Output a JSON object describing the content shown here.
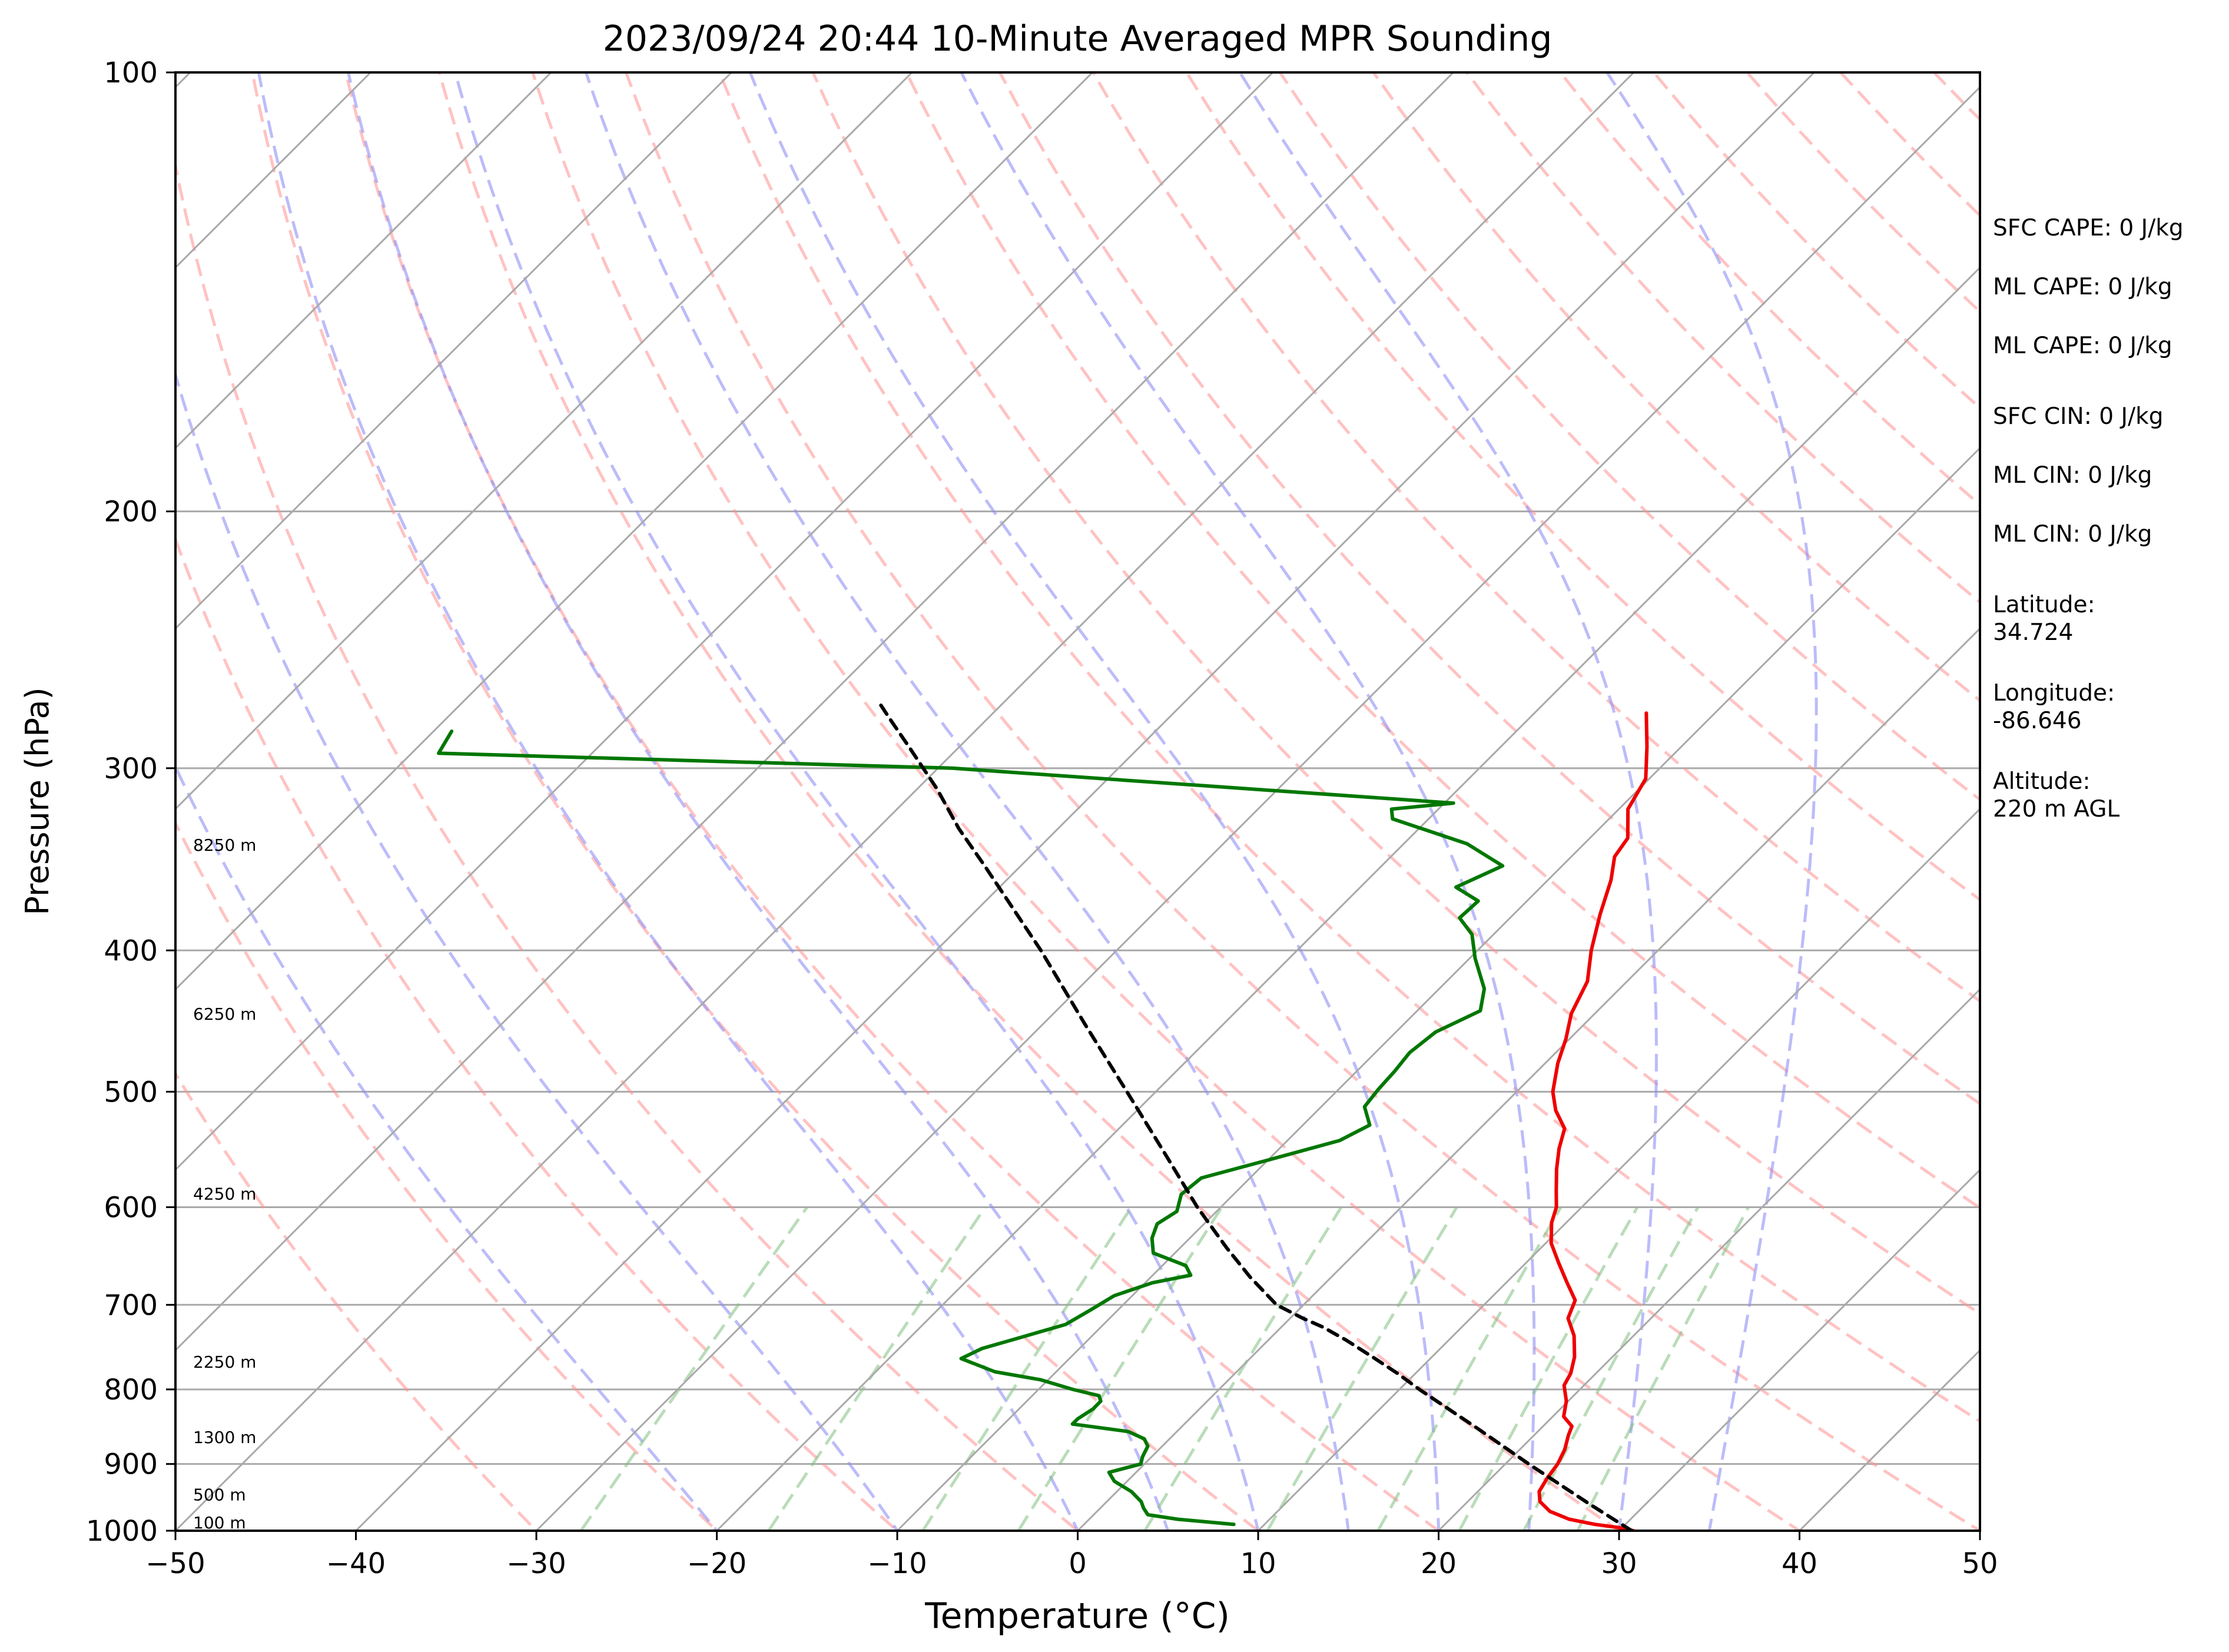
{
  "chart_data": {
    "type": "line",
    "subtype": "skew-t log-p sounding",
    "title": "2023/09/24 20:44 10-Minute Averaged MPR Sounding",
    "xlabel": "Temperature (°C)",
    "ylabel": "Pressure (hPa)",
    "xlim": [
      -50,
      50
    ],
    "ylim": [
      1000,
      100
    ],
    "y_scale": "log",
    "x_ticks": [
      -50,
      -40,
      -30,
      -20,
      -10,
      0,
      10,
      20,
      30,
      40,
      50
    ],
    "x_tick_labels": [
      "−50",
      "−40",
      "−30",
      "−20",
      "−10",
      "0",
      "10",
      "20",
      "30",
      "40",
      "50"
    ],
    "y_ticks": [
      1000,
      900,
      800,
      700,
      600,
      500,
      400,
      300,
      200,
      100
    ],
    "y_tick_labels": [
      "1000",
      "900",
      "800",
      "700",
      "600",
      "500",
      "400",
      "300",
      "200",
      "100"
    ],
    "grid": true,
    "isotherm_temperatures": [
      -140,
      -130,
      -120,
      -110,
      -100,
      -90,
      -80,
      -70,
      -60,
      -50,
      -40,
      -30,
      -20,
      -10,
      0,
      10,
      20,
      30,
      40,
      50
    ],
    "dry_adiabat_thetas_C": [
      -30,
      -20,
      -10,
      0,
      10,
      20,
      30,
      40,
      50,
      60,
      70,
      80,
      90,
      100,
      110,
      120,
      130,
      140,
      150,
      160,
      170,
      180,
      190,
      200
    ],
    "moist_adiabat_start_temps_C": [
      -20,
      -10,
      0,
      5,
      10,
      15,
      20,
      25,
      30,
      35
    ],
    "mixing_ratio_lines_gkg": [
      0.4,
      1,
      2,
      3,
      5,
      8,
      12,
      16,
      20,
      24
    ],
    "colors": {
      "temperature": "#ee0000",
      "dewpoint": "#007700",
      "parcel": "#000000",
      "dry_adiabat": "#ff9090",
      "moist_adiabat": "#8f8ff5",
      "mixing_ratio": "#7fbf7f",
      "isotherm": "#a9a9a9"
    },
    "series": [
      {
        "key": "temperature",
        "points": [
          [
            1000,
            30.8
          ],
          [
            995,
            29.8
          ],
          [
            990,
            28.3
          ],
          [
            982,
            26.6
          ],
          [
            970,
            25.1
          ],
          [
            955,
            24.0
          ],
          [
            940,
            23.4
          ],
          [
            920,
            23.1
          ],
          [
            900,
            22.9
          ],
          [
            880,
            22.5
          ],
          [
            860,
            21.9
          ],
          [
            848,
            21.6
          ],
          [
            835,
            20.6
          ],
          [
            815,
            19.9
          ],
          [
            795,
            18.9
          ],
          [
            780,
            18.6
          ],
          [
            760,
            17.9
          ],
          [
            735,
            16.7
          ],
          [
            715,
            15.4
          ],
          [
            695,
            14.8
          ],
          [
            675,
            13.3
          ],
          [
            655,
            11.8
          ],
          [
            635,
            10.3
          ],
          [
            615,
            9.2
          ],
          [
            600,
            8.6
          ],
          [
            585,
            7.7
          ],
          [
            565,
            6.5
          ],
          [
            547,
            5.5
          ],
          [
            530,
            4.7
          ],
          [
            515,
            3.2
          ],
          [
            500,
            2.0
          ],
          [
            478,
            0.7
          ],
          [
            460,
            -0.2
          ],
          [
            442,
            -1.3
          ],
          [
            420,
            -2.2
          ],
          [
            400,
            -3.7
          ],
          [
            378,
            -5.2
          ],
          [
            358,
            -6.5
          ],
          [
            345,
            -7.6
          ],
          [
            335,
            -7.9
          ],
          [
            320,
            -9.5
          ],
          [
            305,
            -10.2
          ],
          [
            290,
            -11.9
          ],
          [
            275,
            -13.8
          ]
        ]
      },
      {
        "key": "dewpoint",
        "points": [
          [
            990,
            8.3
          ],
          [
            982,
            4.9
          ],
          [
            975,
            3.0
          ],
          [
            965,
            2.4
          ],
          [
            955,
            1.9
          ],
          [
            940,
            0.8
          ],
          [
            925,
            -0.7
          ],
          [
            912,
            -1.5
          ],
          [
            900,
            -0.2
          ],
          [
            890,
            -0.5
          ],
          [
            875,
            -0.8
          ],
          [
            865,
            -1.4
          ],
          [
            855,
            -2.7
          ],
          [
            845,
            -6.2
          ],
          [
            838,
            -6.2
          ],
          [
            825,
            -5.9
          ],
          [
            815,
            -5.9
          ],
          [
            808,
            -6.3
          ],
          [
            800,
            -8.1
          ],
          [
            788,
            -10.4
          ],
          [
            778,
            -13.4
          ],
          [
            762,
            -16.0
          ],
          [
            750,
            -15.4
          ],
          [
            738,
            -14.0
          ],
          [
            722,
            -12.1
          ],
          [
            705,
            -11.5
          ],
          [
            690,
            -11.0
          ],
          [
            676,
            -9.6
          ],
          [
            668,
            -7.9
          ],
          [
            658,
            -8.7
          ],
          [
            645,
            -11.2
          ],
          [
            630,
            -12.1
          ],
          [
            616,
            -12.6
          ],
          [
            604,
            -12.2
          ],
          [
            588,
            -12.9
          ],
          [
            573,
            -12.7
          ],
          [
            557,
            -10.0
          ],
          [
            540,
            -7.1
          ],
          [
            527,
            -6.3
          ],
          [
            512,
            -7.6
          ],
          [
            498,
            -7.8
          ],
          [
            484,
            -7.9
          ],
          [
            470,
            -8.1
          ],
          [
            455,
            -7.8
          ],
          [
            440,
            -6.5
          ],
          [
            425,
            -7.5
          ],
          [
            405,
            -9.7
          ],
          [
            390,
            -11.2
          ],
          [
            380,
            -12.8
          ],
          [
            370,
            -12.7
          ],
          [
            362,
            -14.7
          ],
          [
            350,
            -13.3
          ],
          [
            338,
            -16.5
          ],
          [
            325,
            -22.0
          ],
          [
            320,
            -22.6
          ],
          [
            317,
            -19.5
          ],
          [
            300,
            -49.2
          ],
          [
            293,
            -78.5
          ],
          [
            283,
            -79.0
          ]
        ]
      },
      {
        "key": "parcel",
        "points": [
          [
            1000,
            30.7
          ],
          [
            960,
            27.0
          ],
          [
            900,
            21.3
          ],
          [
            850,
            16.4
          ],
          [
            800,
            11.1
          ],
          [
            780,
            9.0
          ],
          [
            760,
            6.7
          ],
          [
            740,
            4.3
          ],
          [
            725,
            2.3
          ],
          [
            715,
            0.7
          ],
          [
            700,
            -1.5
          ],
          [
            670,
            -4.5
          ],
          [
            640,
            -7.4
          ],
          [
            600,
            -11.3
          ],
          [
            550,
            -16.2
          ],
          [
            500,
            -21.6
          ],
          [
            450,
            -27.6
          ],
          [
            400,
            -34.2
          ],
          [
            350,
            -42.0
          ],
          [
            330,
            -45.5
          ],
          [
            310,
            -48.9
          ],
          [
            290,
            -52.8
          ],
          [
            278,
            -55.3
          ],
          [
            270,
            -57.0
          ]
        ]
      }
    ],
    "height_labels": [
      {
        "text": "100 m",
        "pressure": 1000
      },
      {
        "text": "500 m",
        "pressure": 957
      },
      {
        "text": "1300 m",
        "pressure": 874
      },
      {
        "text": "2250 m",
        "pressure": 776
      },
      {
        "text": "4250 m",
        "pressure": 595
      },
      {
        "text": "6250 m",
        "pressure": 448
      },
      {
        "text": "8250 m",
        "pressure": 343
      }
    ],
    "side_annotations": [
      {
        "lines": [
          "SFC CAPE: 0 J/kg"
        ]
      },
      {
        "lines": [
          "ML CAPE: 0 J/kg"
        ]
      },
      {
        "lines": [
          "ML CAPE: 0 J/kg"
        ]
      },
      {
        "lines": [
          "SFC CIN: 0 J/kg"
        ]
      },
      {
        "lines": [
          "ML CIN: 0 J/kg"
        ]
      },
      {
        "lines": [
          "ML CIN: 0 J/kg"
        ]
      },
      {
        "lines": [
          "Latitude:",
          "34.724"
        ]
      },
      {
        "lines": [
          "Longitude:",
          "-86.646"
        ]
      },
      {
        "lines": [
          "Altitude:",
          "220 m AGL"
        ]
      }
    ]
  }
}
